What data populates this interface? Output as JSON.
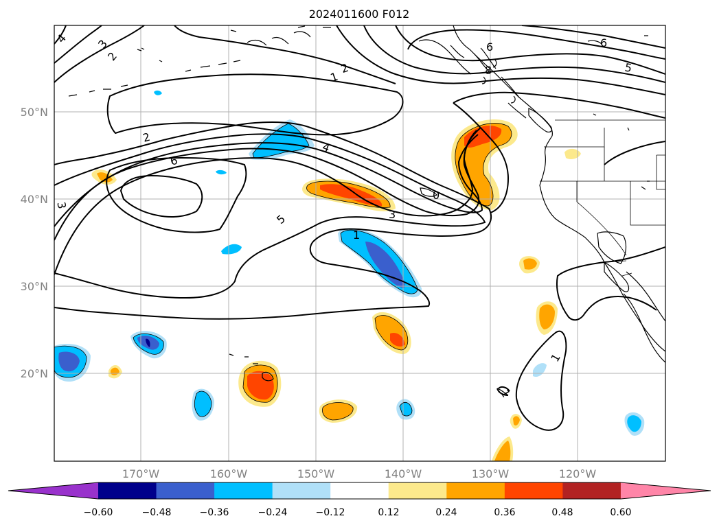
{
  "title": "2024011600 F012",
  "lat_labels": [
    "50°N",
    "40°N",
    "30°N",
    "20°N"
  ],
  "lon_labels": [
    "170°W",
    "160°W",
    "150°W",
    "140°W",
    "130°W",
    "120°W"
  ],
  "colorbar": {
    "ticks": [
      "−0.60",
      "−0.48",
      "−0.36",
      "−0.24",
      "−0.12",
      "0.12",
      "0.24",
      "0.36",
      "0.48",
      "0.60"
    ],
    "colors": [
      "#9932cc",
      "#00008b",
      "#3a5fcd",
      "#00bfff",
      "#b0e0f8",
      "#ffffff",
      "#fce98c",
      "#ffa500",
      "#ff4500",
      "#b22222",
      "#ff85a8"
    ]
  },
  "contour_labels": [
    "4",
    "3",
    "2",
    "2",
    "1",
    "6",
    "8",
    "6",
    "5",
    "2",
    "6",
    "4",
    "3",
    "5",
    "3",
    "1",
    "0",
    "1",
    "1"
  ]
}
